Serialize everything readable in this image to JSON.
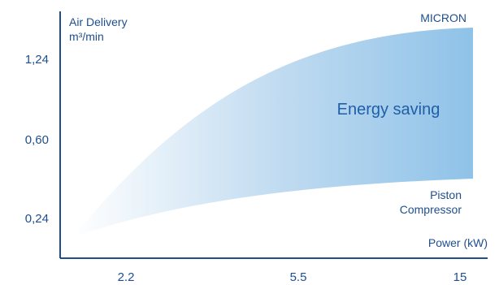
{
  "chart_data": {
    "type": "area",
    "title": "",
    "ylabel_line1": "Air Delivery",
    "ylabel_line2": "m³/min",
    "xlabel": "Power  (kW)",
    "x_ticks": [
      "2.2",
      "5.5",
      "15"
    ],
    "y_ticks": [
      "0,24",
      "0,60",
      "1,24"
    ],
    "series": [
      {
        "name": "MICRON",
        "label": "MICRON"
      },
      {
        "name": "Piston Compressor",
        "label_line1": "Piston",
        "label_line2": "Compressor"
      }
    ],
    "annotation": "Energy saving",
    "colors": {
      "axis": "#1f4f8c",
      "text": "#1f4f8c",
      "fill": "#8fc2e8",
      "fill_light": "#ffffff"
    },
    "grid": false,
    "legend": "none"
  }
}
